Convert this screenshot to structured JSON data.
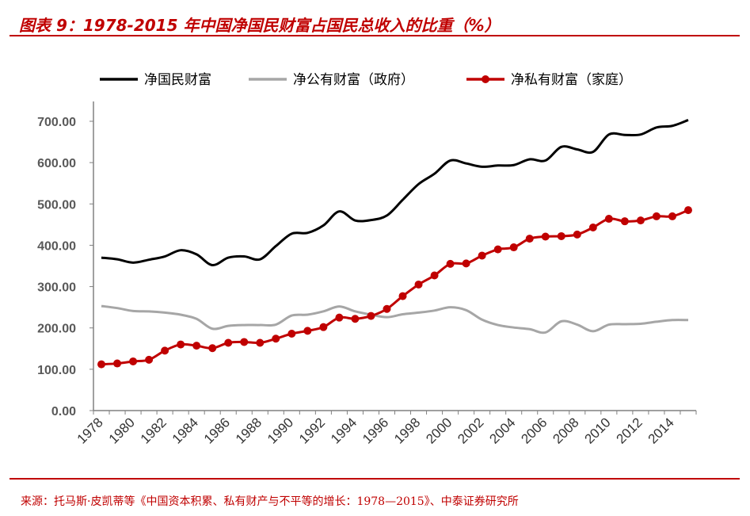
{
  "header": {
    "title": "图表 9：1978-2015 年中国净国民财富占国民总收入的比重（%）"
  },
  "footer": {
    "source": "来源：托马斯·皮凯蒂等《中国资本积累、私有财产与不平等的增长：1978—2015》、中泰证券研究所"
  },
  "chart_data": {
    "type": "line",
    "title": "",
    "xlabel": "",
    "ylabel": "",
    "ylim": [
      0,
      700
    ],
    "yticks": [
      "0.00",
      "100.00",
      "200.00",
      "300.00",
      "400.00",
      "500.00",
      "600.00",
      "700.00"
    ],
    "xticks": [
      "1978",
      "1980",
      "1982",
      "1984",
      "1986",
      "1988",
      "1990",
      "1992",
      "1994",
      "1996",
      "1998",
      "2000",
      "2002",
      "2004",
      "2006",
      "2008",
      "2010",
      "2012",
      "2014"
    ],
    "x": [
      1978,
      1979,
      1980,
      1981,
      1982,
      1983,
      1984,
      1985,
      1986,
      1987,
      1988,
      1989,
      1990,
      1991,
      1992,
      1993,
      1994,
      1995,
      1996,
      1997,
      1998,
      1999,
      2000,
      2001,
      2002,
      2003,
      2004,
      2005,
      2006,
      2007,
      2008,
      2009,
      2010,
      2011,
      2012,
      2013,
      2014,
      2015
    ],
    "legend_position": "top",
    "grid": false,
    "series": [
      {
        "name": "净国民财富",
        "color": "#000000",
        "markers": false,
        "values": [
          370,
          366,
          358,
          365,
          373,
          388,
          378,
          352,
          370,
          373,
          366,
          398,
          428,
          430,
          448,
          482,
          460,
          461,
          472,
          510,
          548,
          573,
          605,
          598,
          590,
          593,
          594,
          608,
          605,
          638,
          632,
          626,
          668,
          667,
          668,
          685,
          689,
          703
        ]
      },
      {
        "name": "净公有财富（政府）",
        "color": "#a6a6a6",
        "markers": false,
        "values": [
          253,
          248,
          241,
          240,
          237,
          232,
          222,
          198,
          205,
          207,
          207,
          208,
          230,
          232,
          240,
          252,
          240,
          232,
          226,
          233,
          237,
          242,
          250,
          243,
          220,
          207,
          201,
          197,
          189,
          216,
          208,
          192,
          208,
          209,
          210,
          215,
          219,
          219
        ]
      },
      {
        "name": "净私有财富（家庭）",
        "color": "#c00000",
        "markers": true,
        "values": [
          112,
          114,
          119,
          123,
          145,
          160,
          157,
          151,
          164,
          166,
          164,
          174,
          186,
          193,
          202,
          225,
          222,
          229,
          246,
          277,
          305,
          327,
          355,
          356,
          375,
          390,
          395,
          416,
          421,
          422,
          426,
          443,
          464,
          458,
          460,
          470,
          470,
          485
        ]
      }
    ]
  }
}
